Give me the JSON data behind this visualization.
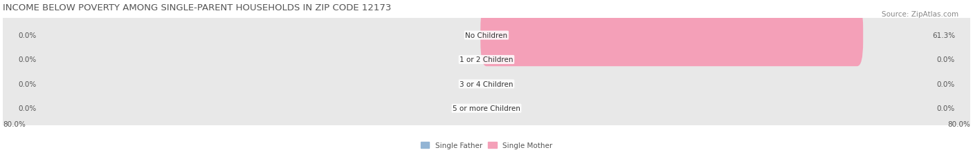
{
  "title": "INCOME BELOW POVERTY AMONG SINGLE-PARENT HOUSEHOLDS IN ZIP CODE 12173",
  "source": "Source: ZipAtlas.com",
  "categories": [
    "No Children",
    "1 or 2 Children",
    "3 or 4 Children",
    "5 or more Children"
  ],
  "single_father": [
    0.0,
    0.0,
    0.0,
    0.0
  ],
  "single_mother": [
    61.3,
    0.0,
    0.0,
    0.0
  ],
  "father_color": "#92b4d4",
  "mother_color": "#f4a0b8",
  "bar_bg_color": "#e8e8e8",
  "row_bg_color": "#f0f0f0",
  "axis_min": -80.0,
  "axis_max": 80.0,
  "left_label": "80.0%",
  "right_label": "80.0%",
  "title_fontsize": 9.5,
  "source_fontsize": 7.5,
  "label_fontsize": 7.5,
  "category_fontsize": 7.5,
  "value_fontsize": 7.5,
  "background_color": "#ffffff"
}
